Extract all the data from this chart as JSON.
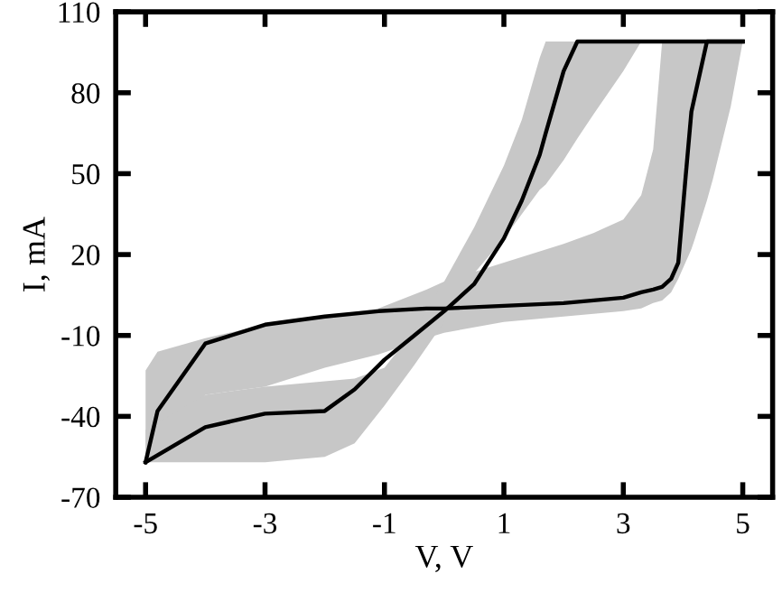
{
  "chart_data": {
    "type": "line",
    "xlabel": "V, V",
    "ylabel": "I, mA",
    "xlim": [
      -5.5,
      5.5
    ],
    "xticks": [
      -5,
      -3,
      -1,
      1,
      3,
      5
    ],
    "ylim": [
      -70,
      110
    ],
    "yticks": [
      -70,
      -40,
      -10,
      20,
      50,
      80,
      110
    ],
    "grid": false,
    "marker": "none",
    "line_style": "solid",
    "series": [
      {
        "color": "#000000",
        "x": [
          -5,
          -4.8,
          -4,
          -3,
          -2,
          -1.1,
          -0.3,
          0,
          1,
          2,
          2.5,
          3,
          3.3,
          3.5,
          3.65,
          3.8,
          3.92,
          4.04,
          4.14,
          4.2,
          4.4,
          4.5,
          4.8,
          5
        ],
        "values": [
          -57,
          -38,
          -13,
          -6,
          -3,
          -1,
          0,
          0,
          1,
          2,
          3,
          4,
          6,
          7,
          8,
          11,
          17,
          48,
          73,
          79,
          99,
          99,
          99,
          99
        ],
        "lower": [
          -57,
          -50,
          -32,
          -29,
          -22,
          -17,
          -11,
          -9,
          -5,
          -3,
          -2,
          -1,
          0,
          2,
          3,
          6,
          11,
          17,
          22,
          26,
          40,
          48,
          75,
          99
        ],
        "upper": [
          -23,
          -16,
          -11,
          -6,
          -3,
          0,
          7,
          10,
          17,
          24,
          28,
          33,
          42,
          59,
          99,
          99,
          99,
          99,
          99,
          99,
          99,
          99,
          99,
          99
        ]
      },
      {
        "color": "#000000",
        "x": [
          -5,
          -4,
          -3,
          -2,
          -1.5,
          -1,
          -0.5,
          0,
          0.5,
          1,
          1.3,
          1.6,
          1.7,
          2,
          2.23,
          2.5,
          3,
          3.3,
          5
        ],
        "values": [
          -57,
          -44,
          -39,
          -38,
          -30,
          -19,
          -10,
          -1,
          9,
          26,
          40,
          57,
          65,
          88,
          99,
          99,
          99,
          99,
          99
        ],
        "lower": [
          -57,
          -57,
          -57,
          -55,
          -50,
          -36,
          -21,
          -5,
          13,
          26,
          35,
          44,
          46,
          55,
          63,
          72,
          88,
          99,
          null
        ],
        "upper": [
          -45,
          -32,
          -29,
          -27,
          -26,
          -22,
          -8,
          10,
          30,
          53,
          70,
          93,
          99,
          99,
          99,
          99,
          99,
          99,
          null
        ]
      }
    ]
  }
}
